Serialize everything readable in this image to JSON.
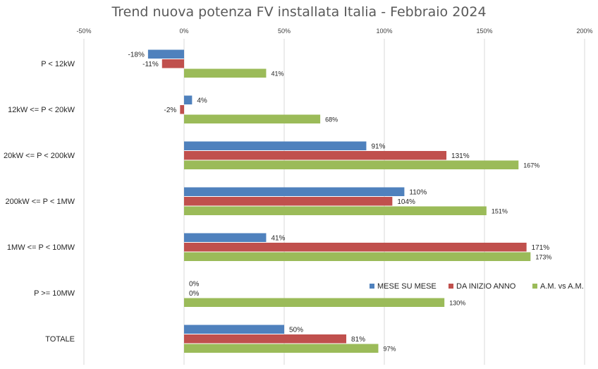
{
  "chart_data": {
    "type": "bar",
    "orientation": "horizontal",
    "title": "Trend nuova potenza FV installata Italia - Febbraio 2024",
    "categories": [
      "P < 12kW",
      "12kW <= P < 20kW",
      "20kW <= P < 200kW",
      "200kW <= P < 1MW",
      "1MW <= P < 10MW",
      "P >= 10MW",
      "TOTALE"
    ],
    "series": [
      {
        "name": "MESE SU  MESE",
        "color": "#4f81bd",
        "values": [
          -18,
          4,
          91,
          110,
          41,
          0,
          50
        ],
        "labels": [
          "-18%",
          "4%",
          "91%",
          "110%",
          "41%",
          "0%",
          "50%"
        ]
      },
      {
        "name": "DA INIZIO ANNO",
        "color": "#c0504d",
        "values": [
          -11,
          -2,
          131,
          104,
          171,
          0,
          81
        ],
        "labels": [
          "-11%",
          "-2%",
          "131%",
          "104%",
          "171%",
          "0%",
          "81%"
        ]
      },
      {
        "name": "A.M. vs A.M.",
        "color": "#9bbb59",
        "values": [
          41,
          68,
          167,
          151,
          173,
          130,
          97
        ],
        "labels": [
          "41%",
          "68%",
          "167%",
          "151%",
          "173%",
          "130%",
          "97%"
        ]
      }
    ],
    "xlim": [
      -50,
      200
    ],
    "xticks": [
      -50,
      0,
      50,
      100,
      150,
      200
    ],
    "xtick_labels": [
      "-50%",
      "0%",
      "50%",
      "100%",
      "150%",
      "200%"
    ],
    "x_axis_position": "top",
    "grid": true,
    "legend": "middle-right"
  }
}
